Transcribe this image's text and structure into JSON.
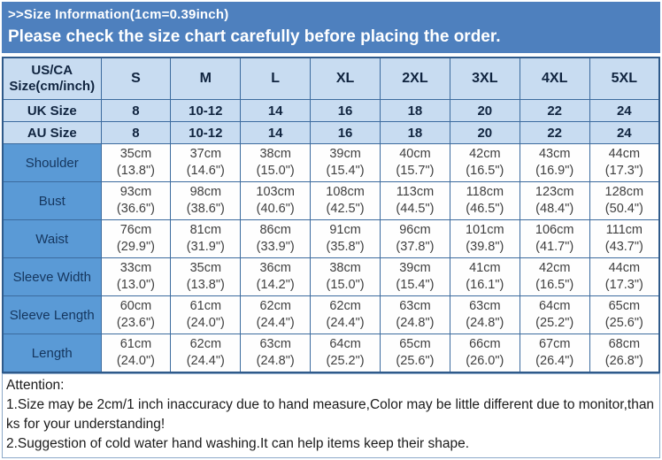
{
  "colors": {
    "banner_bg": "#4e80be",
    "header_bg": "#c8dcf1",
    "label_bg": "#5a9ad6",
    "border": "#3c6b9e",
    "outer_border": "#2f5a8a"
  },
  "banner": {
    "line1": ">>Size Information(1cm=0.39inch)",
    "line2": "Please check the size chart carefully before placing the order."
  },
  "table": {
    "corner": {
      "line1": "US/CA",
      "line2": "Size(cm/inch)"
    },
    "sizes": [
      "S",
      "M",
      "L",
      "XL",
      "2XL",
      "3XL",
      "4XL",
      "5XL"
    ],
    "region_rows": [
      {
        "label": "UK Size",
        "values": [
          "8",
          "10-12",
          "14",
          "16",
          "18",
          "20",
          "22",
          "24"
        ]
      },
      {
        "label": "AU Size",
        "values": [
          "8",
          "10-12",
          "14",
          "16",
          "18",
          "20",
          "22",
          "24"
        ]
      }
    ],
    "measurement_rows": [
      {
        "label": "Shoulder",
        "cm": [
          "35cm",
          "37cm",
          "38cm",
          "39cm",
          "40cm",
          "42cm",
          "43cm",
          "44cm"
        ],
        "inch": [
          "(13.8\")",
          "(14.6\")",
          "(15.0\")",
          "(15.4\")",
          "(15.7\")",
          "(16.5\")",
          "(16.9\")",
          "(17.3\")"
        ]
      },
      {
        "label": "Bust",
        "cm": [
          "93cm",
          "98cm",
          "103cm",
          "108cm",
          "113cm",
          "118cm",
          "123cm",
          "128cm"
        ],
        "inch": [
          "(36.6\")",
          "(38.6\")",
          "(40.6\")",
          "(42.5\")",
          "(44.5\")",
          "(46.5\")",
          "(48.4\")",
          "(50.4\")"
        ]
      },
      {
        "label": "Waist",
        "cm": [
          "76cm",
          "81cm",
          "86cm",
          "91cm",
          "96cm",
          "101cm",
          "106cm",
          "111cm"
        ],
        "inch": [
          "(29.9\")",
          "(31.9\")",
          "(33.9\")",
          "(35.8\")",
          "(37.8\")",
          "(39.8\")",
          "(41.7\")",
          "(43.7\")"
        ]
      },
      {
        "label": "Sleeve Width",
        "cm": [
          "33cm",
          "35cm",
          "36cm",
          "38cm",
          "39cm",
          "41cm",
          "42cm",
          "44cm"
        ],
        "inch": [
          "(13.0\")",
          "(13.8\")",
          "(14.2\")",
          "(15.0\")",
          "(15.4\")",
          "(16.1\")",
          "(16.5\")",
          "(17.3\")"
        ]
      },
      {
        "label": "Sleeve Length",
        "cm": [
          "60cm",
          "61cm",
          "62cm",
          "62cm",
          "63cm",
          "63cm",
          "64cm",
          "65cm"
        ],
        "inch": [
          "(23.6\")",
          "(24.0\")",
          "(24.4\")",
          "(24.4\")",
          "(24.8\")",
          "(24.8\")",
          "(25.2\")",
          "(25.6\")"
        ]
      },
      {
        "label": "Length",
        "cm": [
          "61cm",
          "62cm",
          "63cm",
          "64cm",
          "65cm",
          "66cm",
          "67cm",
          "68cm"
        ],
        "inch": [
          "(24.0\")",
          "(24.4\")",
          "(24.8\")",
          "(25.2\")",
          "(25.6\")",
          "(26.0\")",
          "(26.4\")",
          "(26.8\")"
        ]
      }
    ]
  },
  "attention": {
    "title": "Attention:",
    "note1": "1.Size may be 2cm/1 inch inaccuracy due to hand measure,Color may be little different due to monitor,thanks for your understanding!",
    "note2": "2.Suggestion of cold water hand washing.It can help items keep their shape."
  }
}
